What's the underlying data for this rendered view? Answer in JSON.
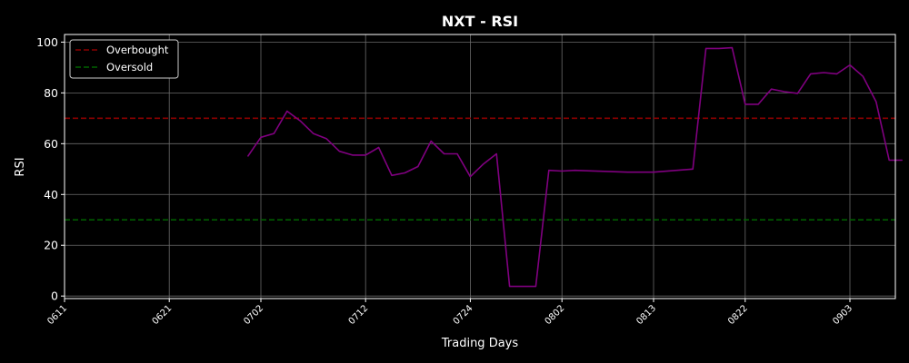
{
  "chart_data": {
    "type": "line",
    "title": "NXT - RSI",
    "xlabel": "Trading Days",
    "ylabel": "RSI",
    "ylim": [
      -1,
      103
    ],
    "y_ticks": [
      0,
      20,
      40,
      60,
      80,
      100
    ],
    "x_tick_labels": [
      "0611",
      "0621",
      "0702",
      "0712",
      "0724",
      "0802",
      "0813",
      "0822",
      "0903"
    ],
    "grid": true,
    "legend_position": "top-left",
    "background": "#000000",
    "series": [
      {
        "name": "RSI",
        "color": "#800080",
        "style": "solid",
        "x": [
          "0630",
          "0702",
          "0703",
          "0704",
          "0705",
          "0708",
          "0709",
          "0710",
          "0711",
          "0712",
          "0715",
          "0716",
          "0717",
          "0718",
          "0719",
          "0722",
          "0723",
          "0724",
          "0725",
          "0726",
          "0729",
          "0730",
          "0731",
          "0801",
          "0802",
          "0805",
          "0809",
          "0813",
          "0816",
          "0819",
          "0820",
          "0821",
          "0822",
          "0823",
          "0826",
          "0827",
          "0828",
          "0829",
          "0830",
          "0902",
          "0903",
          "0904",
          "0905",
          "0906",
          "0909"
        ],
        "values": [
          55,
          62.5,
          64,
          72.8,
          69,
          64,
          62,
          57,
          55.5,
          55.5,
          58.5,
          47.5,
          48.5,
          51,
          61,
          56,
          56,
          47,
          52,
          56,
          3.8,
          3.8,
          3.8,
          49.5,
          49.2,
          49.5,
          48.8,
          48.8,
          50,
          97.5,
          97.5,
          97.8,
          75.5,
          75.5,
          81.5,
          80.5,
          79.8,
          87.5,
          88,
          87.5,
          91,
          86.5,
          76.5,
          53.5,
          53.5
        ]
      },
      {
        "name": "Overbought",
        "color": "#8b0000",
        "style": "dashed",
        "y": 70
      },
      {
        "name": "Oversold",
        "color": "#006400",
        "style": "dashed",
        "y": 30
      }
    ]
  }
}
